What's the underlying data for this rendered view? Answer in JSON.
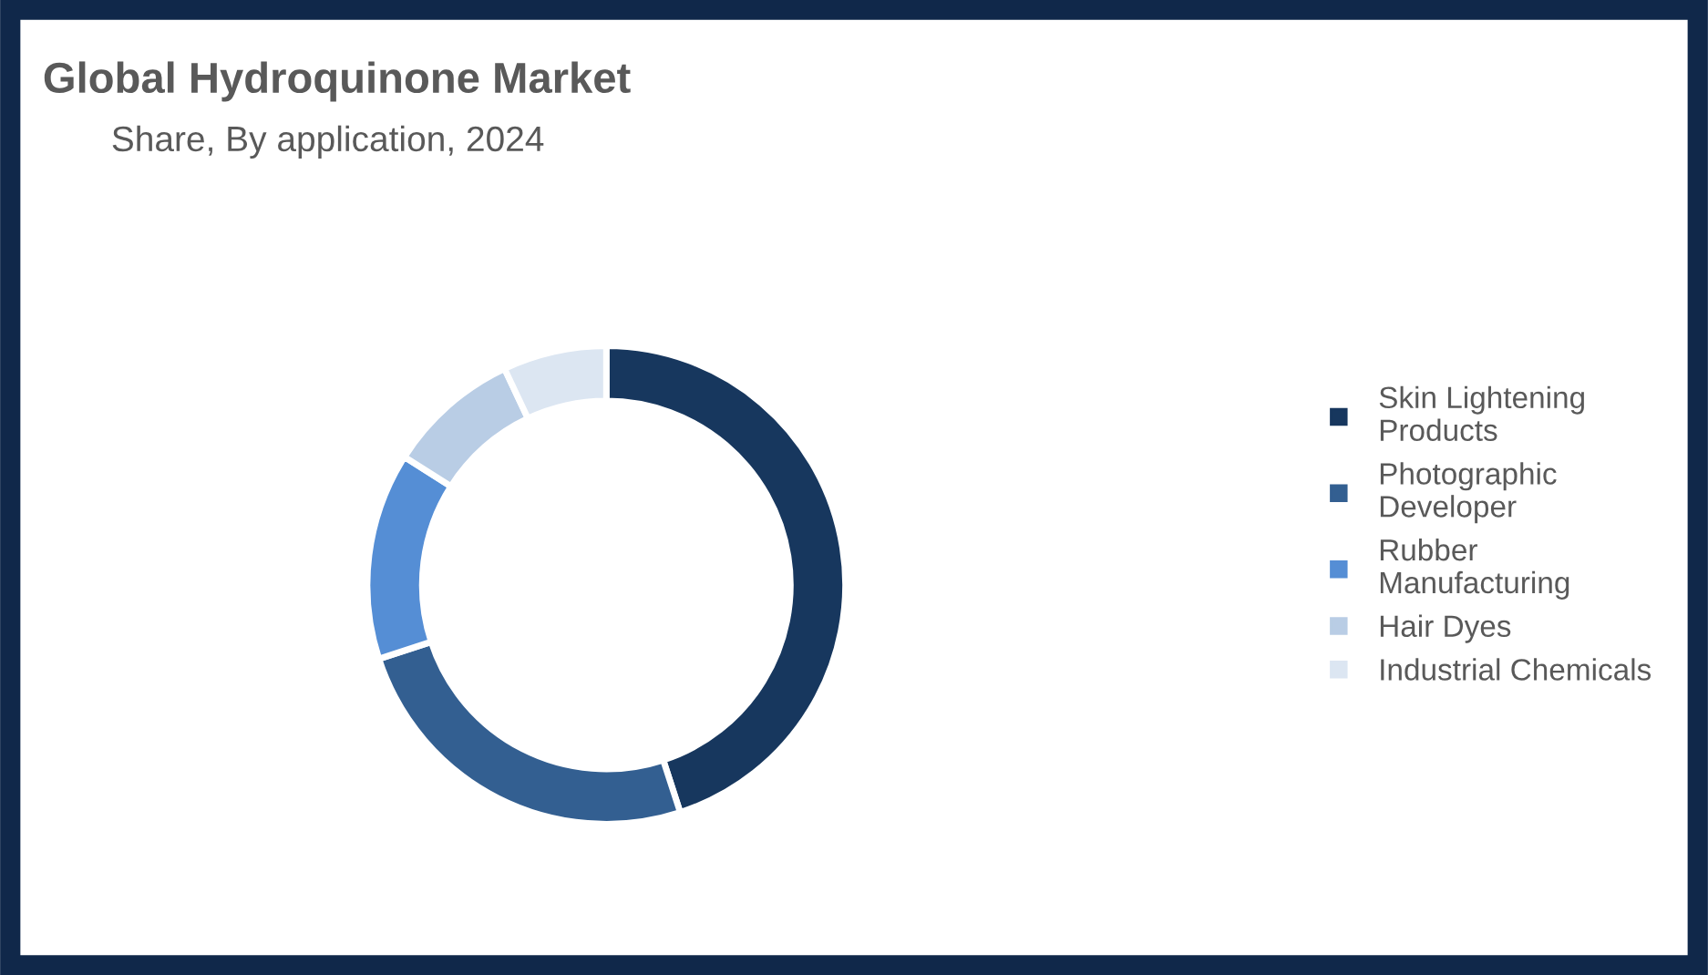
{
  "chart_data": {
    "type": "donut",
    "title": "Global Hydroquinone Market",
    "subtitle": "Share, By application, 2024",
    "categories": [
      "Skin Lightening\nProducts",
      "Photographic\nDeveloper",
      "Rubber\nManufacturing",
      "Hair Dyes",
      "Industrial Chemicals"
    ],
    "values": [
      45,
      25,
      14,
      9,
      7
    ],
    "colors": [
      "#17375e",
      "#335f91",
      "#558ed5",
      "#b9cde5",
      "#dce6f2"
    ],
    "legend": "right"
  }
}
